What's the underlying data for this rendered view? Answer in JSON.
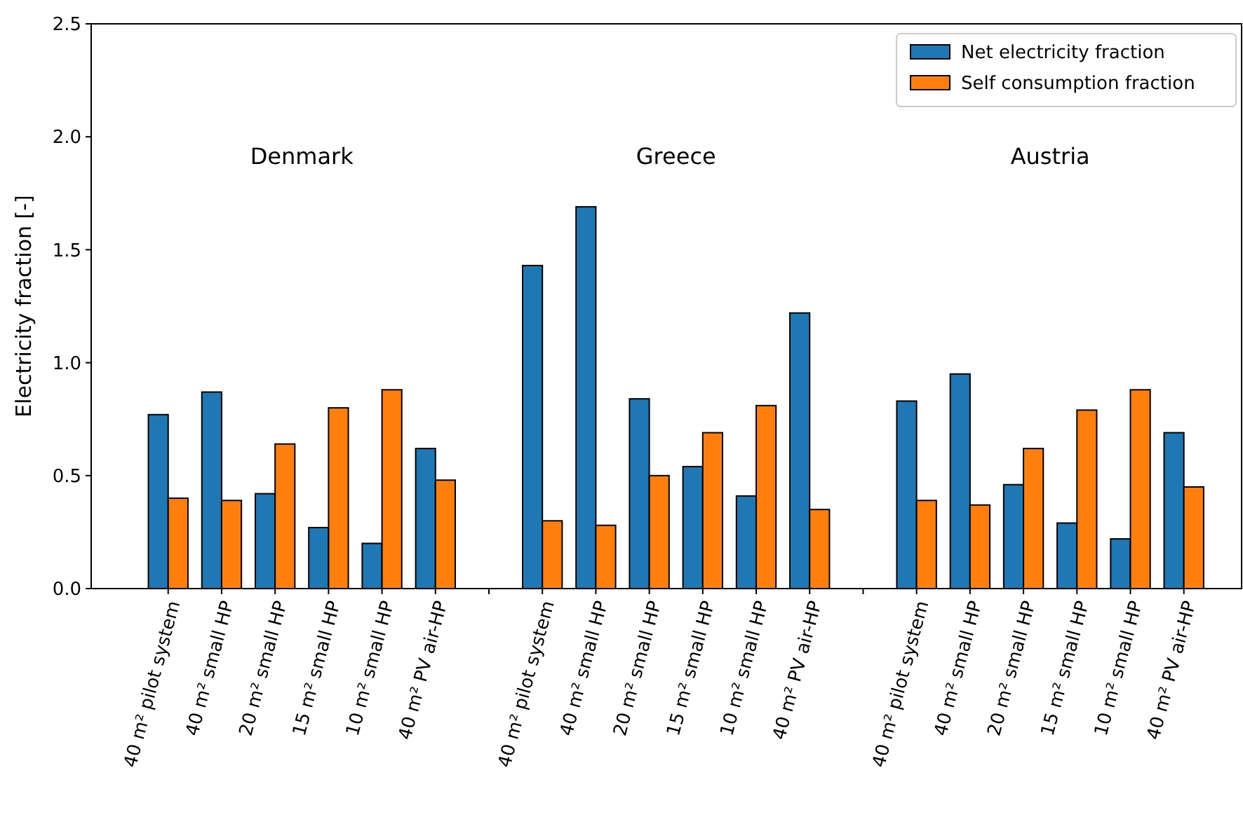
{
  "chart_data": {
    "type": "bar",
    "ylabel": "Electricity fraction [-]",
    "categories": [
      "40 m² pilot system",
      "40 m² small HP",
      "20 m² small HP",
      "15 m² small HP",
      "10 m² small HP",
      "40 m² PV air-HP",
      null,
      "40 m² pilot system",
      "40 m² small HP",
      "20 m² small HP",
      "15 m² small HP",
      "10 m² small HP",
      "40 m² PV air-HP",
      null,
      "40 m² pilot system",
      "40 m² small HP",
      "20 m² small HP",
      "15 m² small HP",
      "10 m² small HP",
      "40 m² PV air-HP"
    ],
    "series": [
      {
        "name": "Net electricity fraction",
        "color": "#1f77b4",
        "values": [
          0.77,
          0.87,
          0.42,
          0.27,
          0.2,
          0.62,
          null,
          1.43,
          1.69,
          0.84,
          0.54,
          0.41,
          1.22,
          null,
          0.83,
          0.95,
          0.46,
          0.29,
          0.22,
          0.69
        ]
      },
      {
        "name": "Self consumption fraction",
        "color": "#ff7f0e",
        "values": [
          0.4,
          0.39,
          0.64,
          0.8,
          0.88,
          0.48,
          null,
          0.3,
          0.28,
          0.5,
          0.69,
          0.81,
          0.35,
          null,
          0.39,
          0.37,
          0.62,
          0.79,
          0.88,
          0.45
        ]
      }
    ],
    "annotations": [
      "Denmark",
      "Greece",
      "Austria"
    ],
    "ylim": [
      0,
      2.5
    ],
    "yticks": [
      {
        "value": 0,
        "label": "0.0"
      },
      {
        "value": 0.5,
        "label": "0.5"
      },
      {
        "value": 1,
        "label": "1.0"
      },
      {
        "value": 1.5,
        "label": "1.5"
      },
      {
        "value": 2,
        "label": "2.0"
      },
      {
        "value": 2.5,
        "label": "2.5"
      }
    ],
    "legend": "top right"
  }
}
